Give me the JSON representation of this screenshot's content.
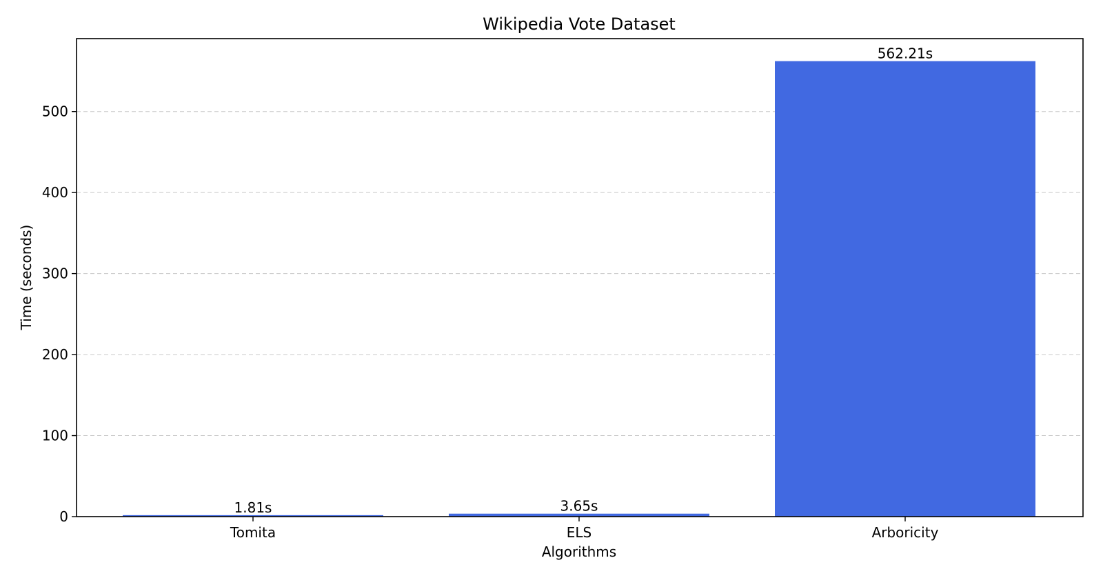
{
  "chart_data": {
    "type": "bar",
    "title": "Wikipedia Vote Dataset",
    "xlabel": "Algorithms",
    "ylabel": "Time (seconds)",
    "categories": [
      "Tomita",
      "ELS",
      "Arboricity"
    ],
    "values": [
      1.81,
      3.65,
      562.21
    ],
    "data_labels": [
      "1.81s",
      "3.65s",
      "562.21s"
    ],
    "ylim": [
      0,
      590
    ],
    "yticks": [
      0,
      100,
      200,
      300,
      400,
      500
    ],
    "grid": "y-dashed",
    "legend": "none",
    "bar_color": "#4169e1"
  }
}
